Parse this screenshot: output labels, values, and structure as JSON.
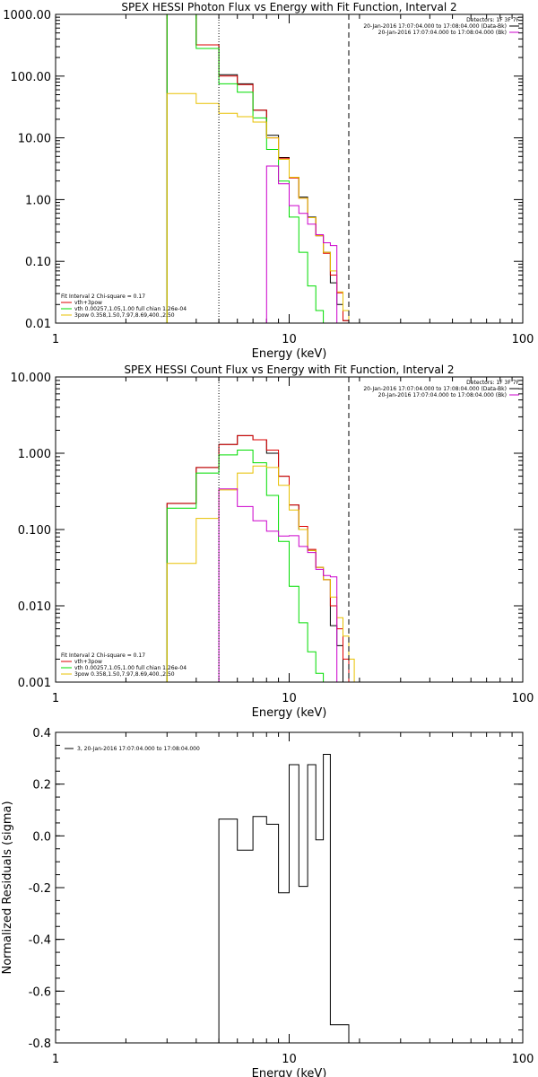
{
  "chart_data": [
    {
      "type": "line",
      "title": "SPEX HESSI Photon Flux vs Energy with Fit Function, Interval 2",
      "xlabel": "Energy (keV)",
      "ylabel": "",
      "xscale": "log",
      "yscale": "log",
      "xlim": [
        1,
        100
      ],
      "ylim": [
        0.01,
        1000
      ],
      "x_ticks": [
        "1",
        "10",
        "100"
      ],
      "y_ticks": [
        "0.01",
        "0.10",
        "1.00",
        "10.00",
        "100.00",
        "1000.00"
      ],
      "edges": [
        3,
        4,
        5,
        6,
        7,
        8,
        9,
        10,
        11,
        12,
        13,
        14,
        15,
        16,
        17,
        18,
        19,
        20,
        22
      ],
      "series": [
        {
          "name": "",
          "color": "#000000",
          "values": [
            1000,
            320,
            105,
            75,
            28,
            11,
            4.8,
            2.3,
            1.1,
            0.52,
            0.26,
            0.14,
            0.045,
            0.02,
            0.011,
            0.01,
            0.01,
            0.01
          ]
        },
        {
          "name": "vth+3pow",
          "color": "#dd0000",
          "values": [
            1000,
            320,
            100,
            73,
            28,
            10,
            4.7,
            2.25,
            1.05,
            0.51,
            0.26,
            0.135,
            0.06,
            0.031,
            0.011,
            0.01,
            0.01,
            0.01
          ]
        },
        {
          "name": "vth 0.00257,1.05,1.00 full chian 1.26e-04",
          "color": "#00dd00",
          "values": [
            1000,
            280,
            75,
            55,
            21,
            6.5,
            2.0,
            0.52,
            0.14,
            0.04,
            0.016,
            0.01,
            0.01,
            0.01,
            0.01,
            0.01,
            0.01,
            0.01
          ]
        },
        {
          "name": "3pow 0.358,1.50,7.97,8.69,400.,2.50",
          "color": "#e8c000",
          "values": [
            52,
            36,
            25,
            22,
            18,
            10,
            4.5,
            2.3,
            1.05,
            0.51,
            0.26,
            0.14,
            0.07,
            0.032,
            0.016,
            0.01,
            0.01,
            0.01
          ]
        },
        {
          "name": "",
          "color": "#cc00cc",
          "values": [
            0.01,
            0.01,
            0.01,
            0.01,
            0.01,
            3.5,
            1.8,
            0.8,
            0.6,
            0.4,
            0.27,
            0.2,
            0.18,
            0.01,
            0.01,
            0.01,
            0.01,
            0.01
          ]
        }
      ],
      "vlines": [
        {
          "x": 5,
          "style": "dotted",
          "color": "#000000"
        },
        {
          "x": 18,
          "style": "dashed",
          "color": "#000000"
        }
      ],
      "legend_topright": [
        {
          "text": "Detectors: 1F 3F 7F",
          "color": ""
        },
        {
          "text": "20-Jan-2016 17:07:04.000 to 17:08:04.000 (Data-Bk)",
          "color": "#000000"
        },
        {
          "text": "20-Jan-2016 17:07:04.000 to 17:08:04.000 (Bk)",
          "color": "#cc00cc"
        }
      ],
      "legend_bottomleft": [
        {
          "text": "Fit Interval 2   Chi-square = 0.17",
          "color": ""
        },
        {
          "text": "vth+3pow",
          "color": "#dd0000"
        },
        {
          "text": "vth 0.00257,1.05,1.00  full chian 1.26e-04",
          "color": "#00dd00"
        },
        {
          "text": "3pow 0.358,1.50,7.97,8.69,400.,2.50",
          "color": "#e8c000"
        }
      ]
    },
    {
      "type": "line",
      "title": "SPEX HESSI Count Flux vs Energy with Fit Function, Interval 2",
      "xlabel": "Energy (keV)",
      "ylabel": "",
      "xscale": "log",
      "yscale": "log",
      "xlim": [
        1,
        100
      ],
      "ylim": [
        0.001,
        10
      ],
      "x_ticks": [
        "1",
        "10",
        "100"
      ],
      "y_ticks": [
        "0.001",
        "0.010",
        "0.100",
        "1.000",
        "10.000"
      ],
      "edges": [
        3,
        4,
        5,
        6,
        7,
        8,
        9,
        10,
        11,
        12,
        13,
        14,
        15,
        16,
        17,
        18,
        19,
        20,
        22,
        25
      ],
      "series": [
        {
          "name": "",
          "color": "#000000",
          "values": [
            0.22,
            0.65,
            1.3,
            1.7,
            1.5,
            1.0,
            0.5,
            0.21,
            0.1,
            0.053,
            0.032,
            0.022,
            0.0055,
            0.003,
            0.001,
            0.001,
            0.001,
            0.001,
            0.001
          ]
        },
        {
          "name": "vth+3pow",
          "color": "#dd0000",
          "values": [
            0.22,
            0.65,
            1.3,
            1.7,
            1.5,
            1.1,
            0.5,
            0.21,
            0.11,
            0.055,
            0.032,
            0.022,
            0.01,
            0.005,
            0.002,
            0.001,
            0.001,
            0.001,
            0.001
          ]
        },
        {
          "name": "vth 0.00257,1.05,1.00 full chian 1.26e-04",
          "color": "#00dd00",
          "values": [
            0.19,
            0.55,
            0.95,
            1.1,
            0.75,
            0.28,
            0.07,
            0.018,
            0.006,
            0.0025,
            0.0013,
            0.001,
            0.001,
            0.001,
            0.001,
            0.001,
            0.001,
            0.001,
            0.001
          ]
        },
        {
          "name": "3pow 0.358,1.50,7.97,8.69,400.,2.50",
          "color": "#e8c000",
          "values": [
            0.036,
            0.14,
            0.33,
            0.55,
            0.68,
            0.65,
            0.38,
            0.18,
            0.1,
            0.053,
            0.032,
            0.022,
            0.013,
            0.007,
            0.004,
            0.002,
            0.001,
            0.001,
            0.001
          ]
        },
        {
          "name": "",
          "color": "#cc00cc",
          "values": [
            0.001,
            0.001,
            0.34,
            0.2,
            0.13,
            0.095,
            0.082,
            0.083,
            0.06,
            0.05,
            0.03,
            0.025,
            0.024,
            0.001,
            0.001,
            0.001,
            0.001,
            0.001,
            0.001
          ]
        }
      ],
      "vlines": [
        {
          "x": 5,
          "style": "dotted",
          "color": "#000000"
        },
        {
          "x": 18,
          "style": "dashed",
          "color": "#000000"
        }
      ],
      "legend_topright": [
        {
          "text": "Detectors: 1F 3F 7F",
          "color": ""
        },
        {
          "text": "20-Jan-2016 17:07:04.000 to 17:08:04.000 (Data-Bk)",
          "color": "#000000"
        },
        {
          "text": "20-Jan-2016 17:07:04.000 to 17:08:04.000 (Bk)",
          "color": "#cc00cc"
        }
      ],
      "legend_bottomleft": [
        {
          "text": "Fit Interval 2   Chi-square = 0.17",
          "color": ""
        },
        {
          "text": "vth+3pow",
          "color": "#dd0000"
        },
        {
          "text": "vth 0.00257,1.05,1.00  full chian 1.26e-04",
          "color": "#00dd00"
        },
        {
          "text": "3pow 0.358,1.50,7.97,8.69,400.,2.50",
          "color": "#e8c000"
        }
      ]
    },
    {
      "type": "line",
      "title": "",
      "xlabel": "Energy (keV)",
      "ylabel": "Normalized Residuals (sigma)",
      "xscale": "log",
      "yscale": "linear",
      "xlim": [
        1,
        100
      ],
      "ylim": [
        -0.8,
        0.4
      ],
      "x_ticks": [
        "1",
        "10",
        "100"
      ],
      "y_ticks": [
        "-0.8",
        "-0.6",
        "-0.4",
        "-0.2",
        "0.0",
        "0.2",
        "0.4"
      ],
      "edges": [
        5,
        6,
        7,
        8,
        9,
        10,
        11,
        12,
        13,
        14,
        15,
        16,
        17,
        18
      ],
      "series": [
        {
          "name": "",
          "color": "#000000",
          "values": [
            0.065,
            -0.055,
            0.075,
            0.045,
            -0.22,
            0.275,
            -0.195,
            0.275,
            -0.015,
            0.315,
            -0.73,
            -0.73,
            -0.73
          ]
        }
      ],
      "vlines": [],
      "legend_topleft": [
        {
          "text": "3, 20-Jan-2016 17:07:04.000 to 17:08:04.000",
          "color": "#000000"
        }
      ]
    }
  ]
}
